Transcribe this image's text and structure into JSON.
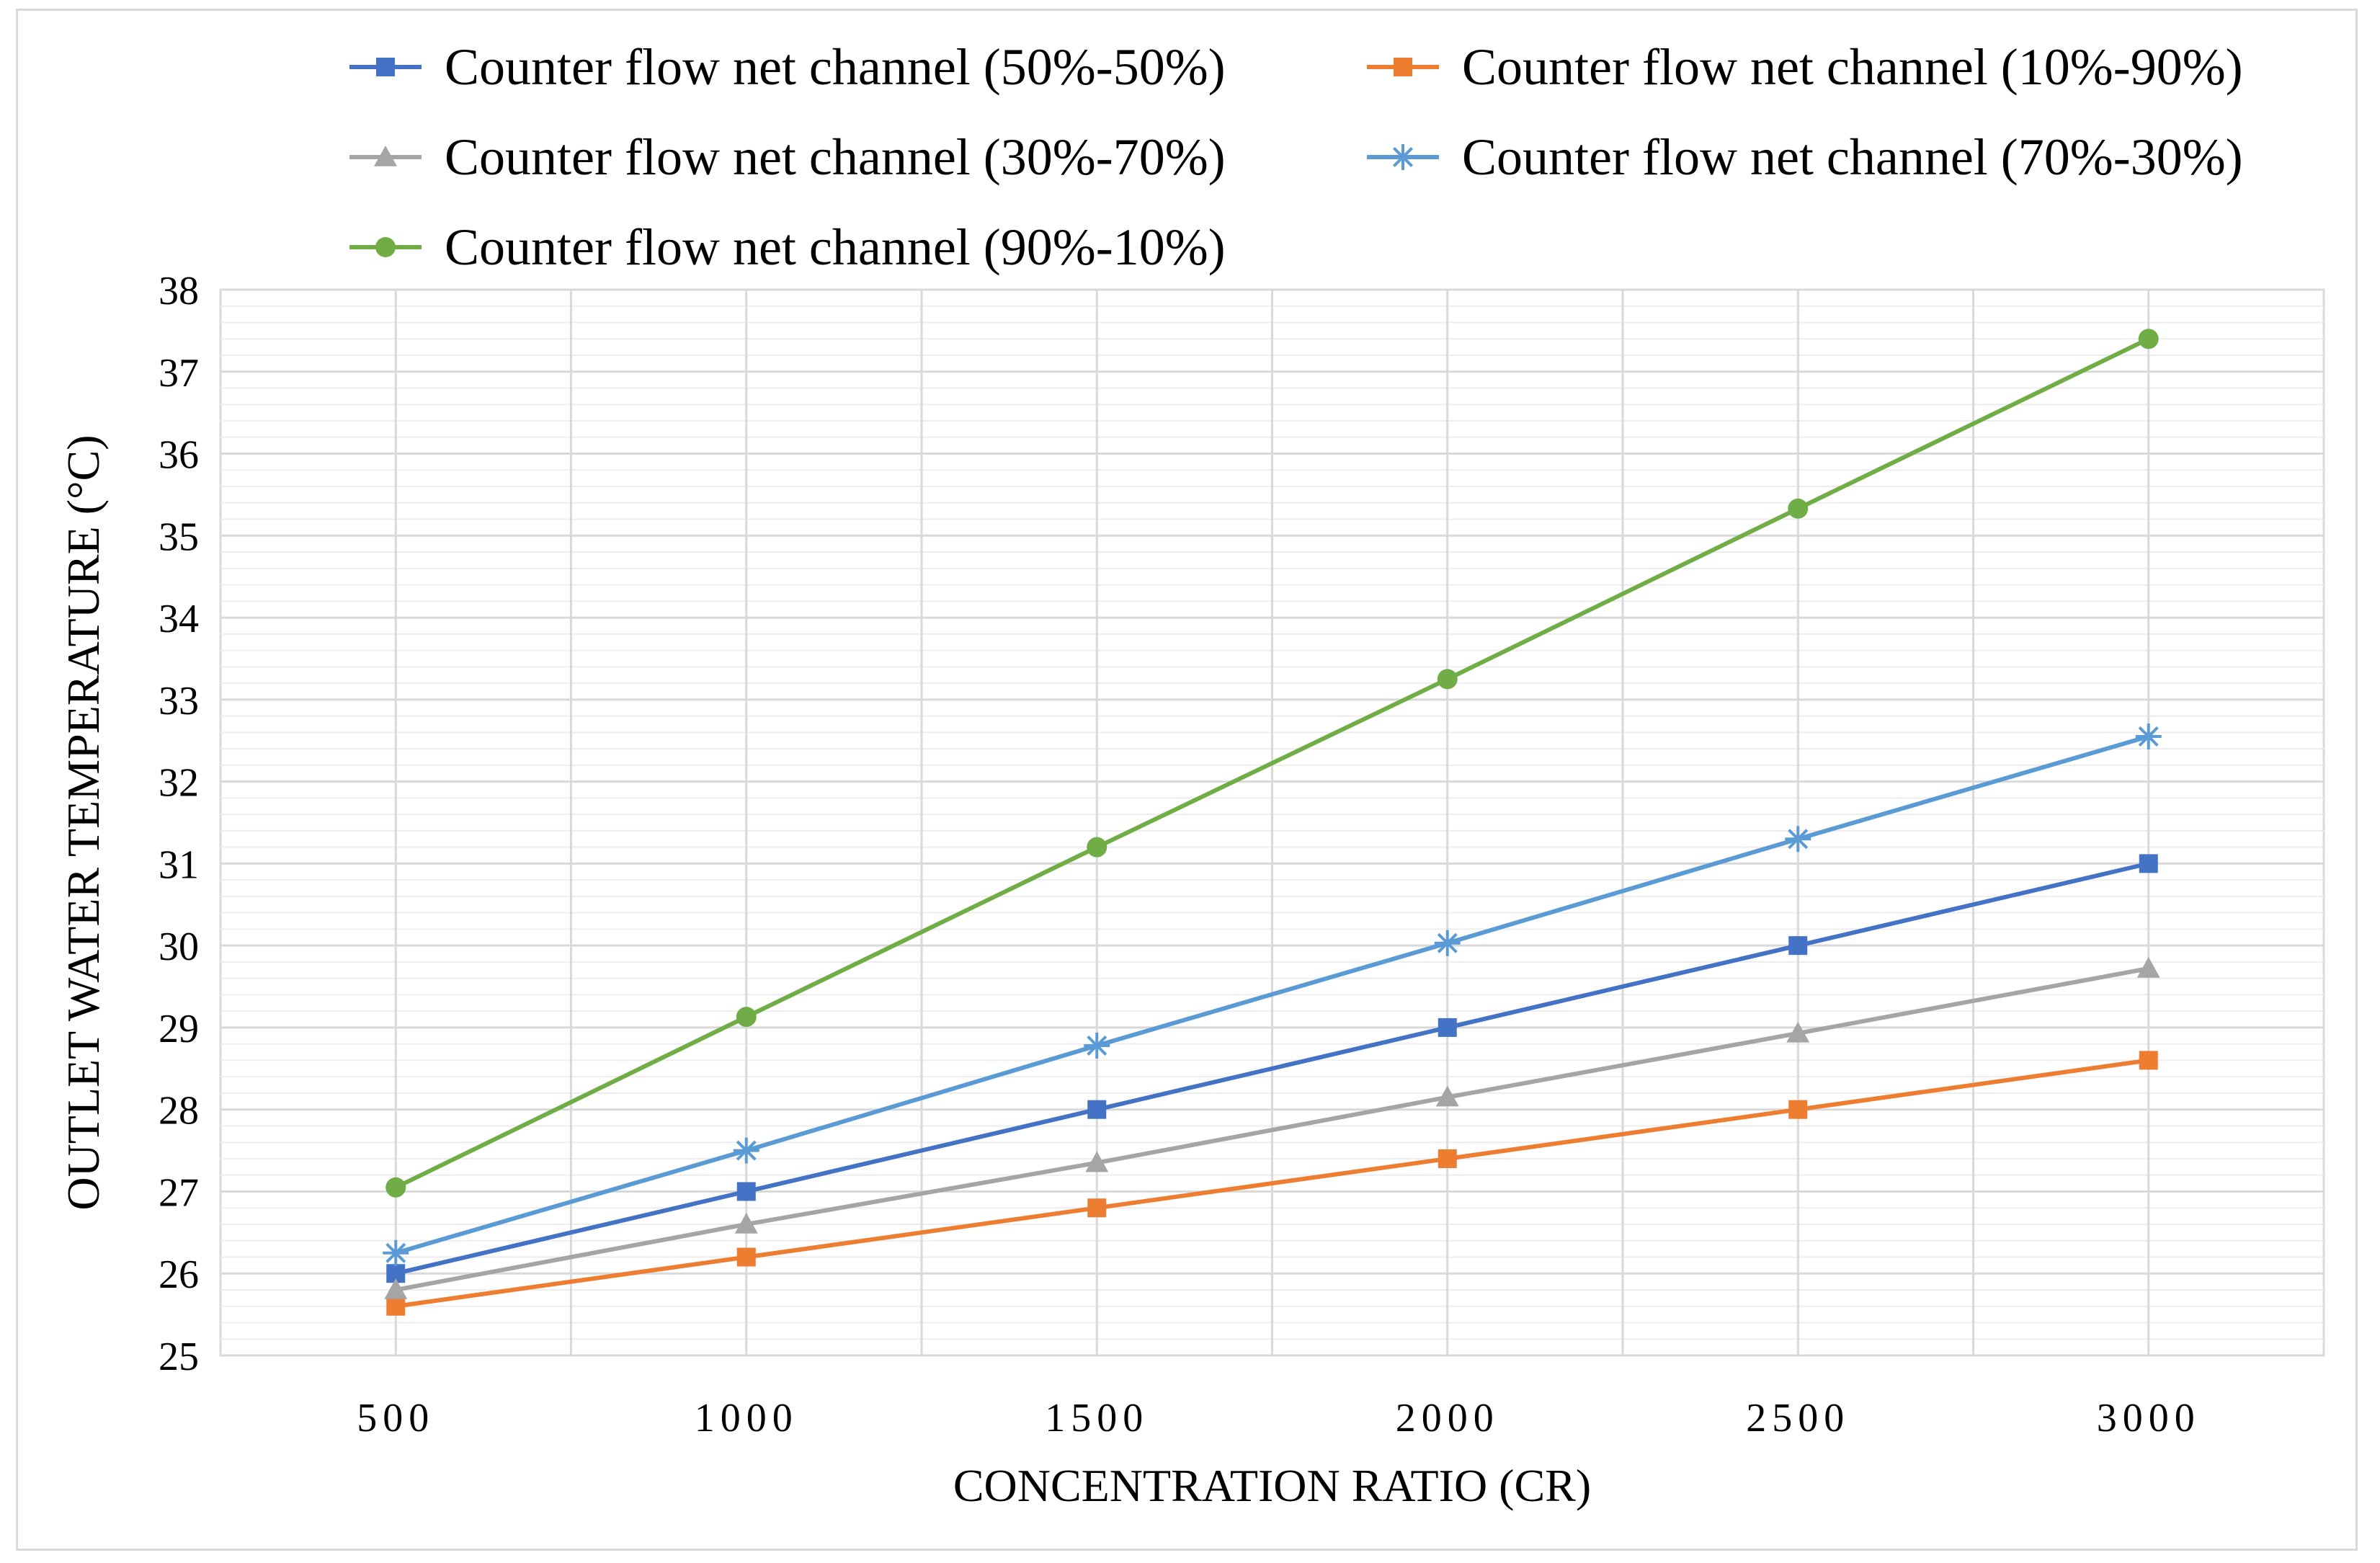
{
  "chart_data": {
    "type": "line",
    "title": "",
    "xlabel": "CONCENTRATION RATIO (CR)",
    "ylabel": "OUTLET WATER TEMPERATURE (°C)",
    "x": [
      500,
      1000,
      1500,
      2000,
      2500,
      3000
    ],
    "xlim": [
      250,
      3250
    ],
    "xticks": [
      500,
      1000,
      1500,
      2000,
      2500,
      3000
    ],
    "xtick_labels": [
      "500",
      "1000",
      "1500",
      "2000",
      "2500",
      "3000"
    ],
    "ylim": [
      25,
      38
    ],
    "yticks": [
      25,
      26,
      27,
      28,
      29,
      30,
      31,
      32,
      33,
      34,
      35,
      36,
      37,
      38
    ],
    "ytick_labels": [
      "25",
      "26",
      "27",
      "28",
      "29",
      "30",
      "31",
      "32",
      "33",
      "34",
      "35",
      "36",
      "37",
      "38"
    ],
    "grid": true,
    "legend_position": "top",
    "series": [
      {
        "name": "Counter flow net channel (50%-50%)",
        "color": "#4472c4",
        "marker": "square",
        "values": [
          26.0,
          27.0,
          28.0,
          29.0,
          30.0,
          31.0
        ]
      },
      {
        "name": "Counter flow net channel (10%-90%)",
        "color": "#ed7d31",
        "marker": "square",
        "values": [
          25.6,
          26.2,
          26.8,
          27.4,
          28.0,
          28.6
        ]
      },
      {
        "name": "Counter flow net channel (30%-70%)",
        "color": "#a5a5a5",
        "marker": "triangle",
        "values": [
          25.8,
          26.6,
          27.35,
          28.15,
          28.93,
          29.72
        ]
      },
      {
        "name": "Counter flow net channel (70%-30%)",
        "color": "#5b9bd5",
        "marker": "star",
        "values": [
          26.25,
          27.5,
          28.78,
          30.03,
          31.3,
          32.55
        ]
      },
      {
        "name": "Counter flow net channel (90%-10%)",
        "color": "#70ad47",
        "marker": "circle",
        "values": [
          27.05,
          29.13,
          31.2,
          33.25,
          35.33,
          37.4
        ]
      }
    ]
  }
}
